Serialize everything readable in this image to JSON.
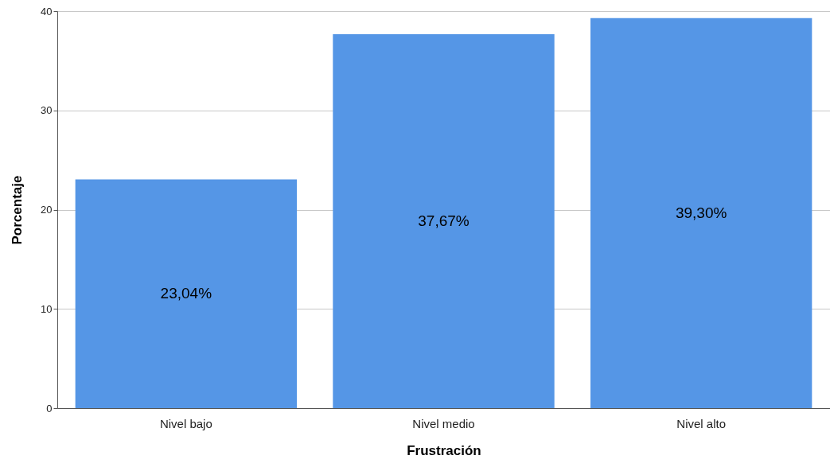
{
  "chart_data": {
    "type": "bar",
    "xlabel": "Frustración",
    "ylabel": "Porcentaje",
    "categories": [
      "Nivel bajo",
      "Nivel medio",
      "Nivel alto"
    ],
    "values": [
      23.04,
      37.67,
      39.3
    ],
    "color": "#5596e6",
    "value_labels": [
      "23,04%",
      "37,67%",
      "39,30%"
    ],
    "ylim": [
      0,
      40
    ],
    "yticks": [
      0,
      10,
      20,
      30,
      40
    ],
    "grid": "y"
  }
}
